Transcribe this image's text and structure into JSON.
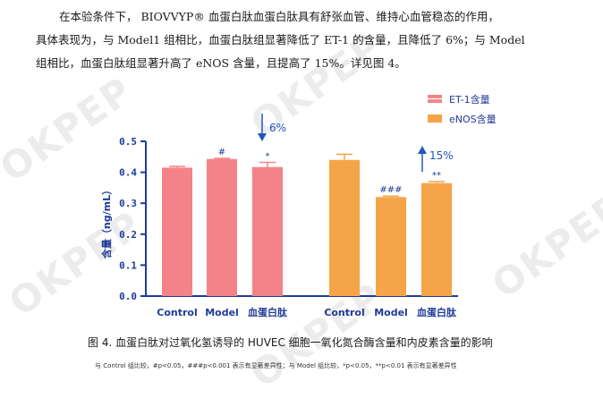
{
  "paragraph": {
    "line1": "在本验条件下， BIOVVYP® 血蛋白肽血蛋白肽具有舒张血管、维持心血管稳态的作用，",
    "line2": "具体表现为，与 Model1 组相比，血蛋白肽组显著降低了 ET-1 的含量，且降低了 6%；与 Model",
    "line3": "组相比，血蛋白肽组显著升高了 eNOS 含量，且提高了 15%。详见图 4。"
  },
  "watermark": "OKPEP",
  "chart_data": {
    "type": "bar",
    "ylabel": "含量（ng/mL）",
    "ylim": [
      0,
      0.5
    ],
    "yticks": [
      "0.0",
      "0.1",
      "0.2",
      "0.3",
      "0.4",
      "0.5"
    ],
    "groups": [
      "Control",
      "Model",
      "血蛋白肽"
    ],
    "series": [
      {
        "name": "ET-1含量",
        "color": "#f38389",
        "values": [
          0.415,
          0.443,
          0.417
        ],
        "errors": [
          0.004,
          0.002,
          0.015
        ],
        "significance": [
          "",
          "#",
          "*"
        ],
        "annotation": "6%",
        "annotation_direction": "down"
      },
      {
        "name": "eNOS含量",
        "color": "#f5a448",
        "values": [
          0.44,
          0.32,
          0.365
        ],
        "errors": [
          0.018,
          0.003,
          0.005
        ],
        "significance": [
          "",
          "###",
          "**"
        ],
        "annotation": "15%",
        "annotation_direction": "up"
      }
    ],
    "axis_color": "#1f3b99",
    "arrow_color": "#2155c4"
  },
  "caption": "图 4. 血蛋白肽对过氧化氢诱导的 HUVEC 细胞一氧化氮合酶含量和内皮素含量的影响",
  "note": "与 Control 组比较，#p<0.05，###p<0.001 表示有显著差异性；与 Model 组比较，*p<0.05，**p<0.01 表示有显著差异性"
}
